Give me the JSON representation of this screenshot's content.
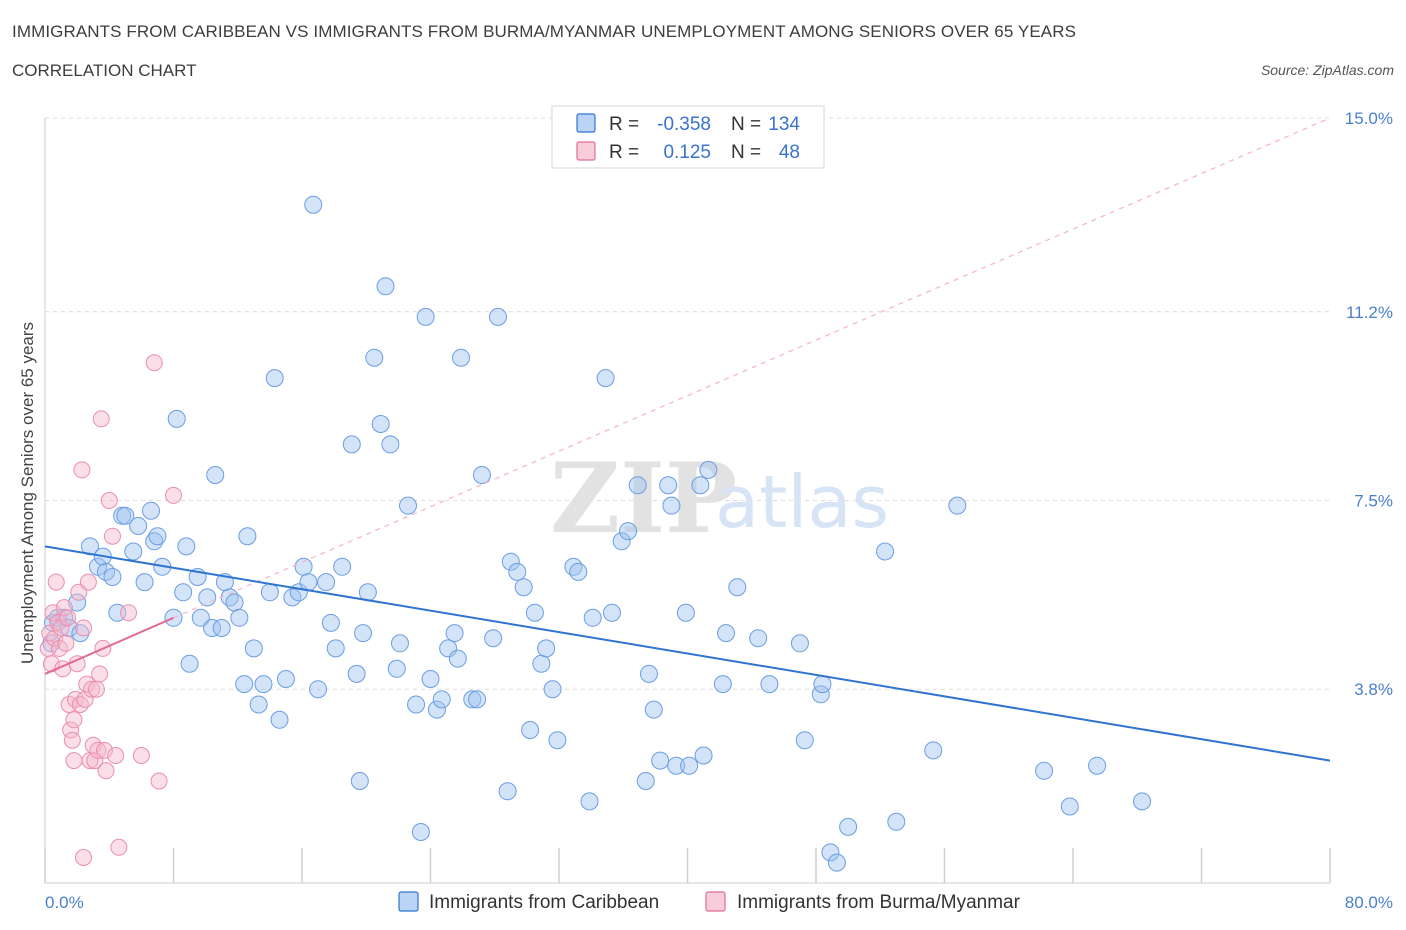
{
  "header": {
    "title": "IMMIGRANTS FROM CARIBBEAN VS IMMIGRANTS FROM BURMA/MYANMAR UNEMPLOYMENT AMONG SENIORS OVER 65 YEARS",
    "subtitle": "CORRELATION CHART",
    "source": "Source: ZipAtlas.com"
  },
  "legend_top": {
    "r_label": "R =",
    "n_label": "N =",
    "rows": [
      {
        "r": "-0.358",
        "n": "134",
        "color": "#9ec1f0"
      },
      {
        "r": "0.125",
        "n": "48",
        "color": "#f5b8cb"
      }
    ]
  },
  "legend_bottom": [
    {
      "label": "Immigrants from Caribbean",
      "color": "#9ec1f0"
    },
    {
      "label": "Immigrants from Burma/Myanmar",
      "color": "#f5b8cb"
    }
  ],
  "watermark": {
    "zip": "ZIP",
    "atlas": "atlas"
  },
  "chart_data": {
    "type": "scatter",
    "title": "IMMIGRANTS FROM CARIBBEAN VS IMMIGRANTS FROM BURMA/MYANMAR UNEMPLOYMENT AMONG SENIORS OVER 65 YEARS",
    "xlabel": "",
    "ylabel": "Unemployment Among Seniors over 65 years",
    "xlim": [
      0,
      80
    ],
    "ylim": [
      0,
      15
    ],
    "x_tick_labels": [
      "0.0%",
      "80.0%"
    ],
    "y_ticks": [
      3.8,
      7.5,
      11.2,
      15.0
    ],
    "y_tick_labels": [
      "3.8%",
      "7.5%",
      "11.2%",
      "15.0%"
    ],
    "grid": true,
    "colors": {
      "caribbean": "#9ec1f0",
      "caribbean_line": "#2f74d0",
      "burma": "#f5b8cb",
      "burma_line": "#e46a96"
    },
    "series": [
      {
        "name": "Immigrants from Caribbean",
        "trend": {
          "x": [
            0,
            80
          ],
          "y": [
            6.6,
            2.4
          ]
        },
        "points": [
          [
            0.4,
            4.7
          ],
          [
            0.5,
            5.1
          ],
          [
            0.8,
            5.2
          ],
          [
            1.2,
            5.2
          ],
          [
            1.5,
            5.0
          ],
          [
            2.0,
            5.5
          ],
          [
            2.2,
            4.9
          ],
          [
            2.8,
            6.6
          ],
          [
            3.3,
            6.2
          ],
          [
            3.6,
            6.4
          ],
          [
            3.8,
            6.1
          ],
          [
            4.2,
            6.0
          ],
          [
            4.5,
            5.3
          ],
          [
            4.8,
            7.2
          ],
          [
            5.0,
            7.2
          ],
          [
            5.5,
            6.5
          ],
          [
            5.8,
            7.0
          ],
          [
            6.2,
            5.9
          ],
          [
            6.6,
            7.3
          ],
          [
            6.8,
            6.7
          ],
          [
            7.0,
            6.8
          ],
          [
            7.3,
            6.2
          ],
          [
            8.0,
            5.2
          ],
          [
            8.2,
            9.1
          ],
          [
            8.6,
            5.7
          ],
          [
            8.8,
            6.6
          ],
          [
            9.0,
            4.3
          ],
          [
            9.5,
            6.0
          ],
          [
            9.7,
            5.2
          ],
          [
            10.1,
            5.6
          ],
          [
            10.4,
            5.0
          ],
          [
            10.6,
            8.0
          ],
          [
            11.0,
            5.0
          ],
          [
            11.2,
            5.9
          ],
          [
            11.5,
            5.6
          ],
          [
            11.8,
            5.5
          ],
          [
            12.1,
            5.2
          ],
          [
            12.4,
            3.9
          ],
          [
            12.6,
            6.8
          ],
          [
            13.0,
            4.6
          ],
          [
            13.3,
            3.5
          ],
          [
            13.6,
            3.9
          ],
          [
            14.0,
            5.7
          ],
          [
            14.3,
            9.9
          ],
          [
            14.6,
            3.2
          ],
          [
            15.0,
            4.0
          ],
          [
            15.4,
            5.6
          ],
          [
            15.8,
            5.7
          ],
          [
            16.1,
            6.2
          ],
          [
            16.4,
            5.9
          ],
          [
            16.7,
            13.3
          ],
          [
            17.0,
            3.8
          ],
          [
            17.5,
            5.9
          ],
          [
            17.8,
            5.1
          ],
          [
            18.1,
            4.6
          ],
          [
            18.5,
            6.2
          ],
          [
            19.1,
            8.6
          ],
          [
            19.4,
            4.1
          ],
          [
            19.6,
            2.0
          ],
          [
            19.8,
            4.9
          ],
          [
            20.1,
            5.7
          ],
          [
            20.5,
            10.3
          ],
          [
            20.9,
            9.0
          ],
          [
            21.2,
            11.7
          ],
          [
            21.5,
            8.6
          ],
          [
            21.9,
            4.2
          ],
          [
            22.1,
            4.7
          ],
          [
            22.6,
            7.4
          ],
          [
            23.1,
            3.5
          ],
          [
            23.4,
            1.0
          ],
          [
            23.7,
            11.1
          ],
          [
            24.0,
            4.0
          ],
          [
            24.4,
            3.4
          ],
          [
            24.7,
            3.6
          ],
          [
            25.1,
            4.6
          ],
          [
            25.5,
            4.9
          ],
          [
            25.7,
            4.4
          ],
          [
            25.9,
            10.3
          ],
          [
            26.6,
            3.6
          ],
          [
            26.9,
            3.6
          ],
          [
            27.2,
            8.0
          ],
          [
            27.9,
            4.8
          ],
          [
            28.2,
            11.1
          ],
          [
            28.8,
            1.8
          ],
          [
            29.0,
            6.3
          ],
          [
            29.4,
            6.1
          ],
          [
            29.8,
            5.8
          ],
          [
            30.2,
            3.0
          ],
          [
            30.5,
            5.3
          ],
          [
            30.9,
            4.3
          ],
          [
            31.2,
            4.6
          ],
          [
            31.6,
            3.8
          ],
          [
            31.9,
            2.8
          ],
          [
            32.9,
            6.2
          ],
          [
            33.2,
            6.1
          ],
          [
            33.9,
            1.6
          ],
          [
            34.1,
            5.2
          ],
          [
            34.9,
            9.9
          ],
          [
            35.3,
            5.3
          ],
          [
            35.9,
            6.7
          ],
          [
            36.3,
            6.9
          ],
          [
            36.9,
            7.8
          ],
          [
            37.4,
            2.0
          ],
          [
            37.6,
            4.1
          ],
          [
            37.9,
            3.4
          ],
          [
            38.3,
            2.4
          ],
          [
            38.8,
            7.8
          ],
          [
            39.0,
            7.4
          ],
          [
            39.3,
            2.3
          ],
          [
            39.9,
            5.3
          ],
          [
            40.1,
            2.3
          ],
          [
            40.8,
            7.8
          ],
          [
            41.0,
            2.5
          ],
          [
            41.3,
            8.1
          ],
          [
            42.2,
            3.9
          ],
          [
            42.4,
            4.9
          ],
          [
            43.1,
            5.8
          ],
          [
            44.4,
            4.8
          ],
          [
            45.1,
            3.9
          ],
          [
            47.0,
            4.7
          ],
          [
            47.3,
            2.8
          ],
          [
            48.3,
            3.7
          ],
          [
            48.4,
            3.9
          ],
          [
            48.9,
            0.6
          ],
          [
            49.3,
            0.4
          ],
          [
            50.0,
            1.1
          ],
          [
            52.3,
            6.5
          ],
          [
            53.0,
            1.2
          ],
          [
            55.3,
            2.6
          ],
          [
            56.8,
            7.4
          ],
          [
            62.2,
            2.2
          ],
          [
            63.8,
            1.5
          ],
          [
            65.5,
            2.3
          ],
          [
            68.3,
            1.6
          ]
        ]
      },
      {
        "name": "Immigrants from Burma/Myanmar",
        "trend": {
          "x": [
            0,
            8
          ],
          "y": [
            4.1,
            5.2
          ]
        },
        "extension": {
          "x": [
            8,
            80
          ],
          "y": [
            5.2,
            15.0
          ]
        },
        "points": [
          [
            0.2,
            4.6
          ],
          [
            0.3,
            4.9
          ],
          [
            0.4,
            4.3
          ],
          [
            0.5,
            5.3
          ],
          [
            0.6,
            4.8
          ],
          [
            0.7,
            5.9
          ],
          [
            0.8,
            5.1
          ],
          [
            0.9,
            4.6
          ],
          [
            1.0,
            5.0
          ],
          [
            1.1,
            4.2
          ],
          [
            1.2,
            5.4
          ],
          [
            1.3,
            4.7
          ],
          [
            1.4,
            5.2
          ],
          [
            1.5,
            3.5
          ],
          [
            1.6,
            3.0
          ],
          [
            1.7,
            2.8
          ],
          [
            1.8,
            3.2
          ],
          [
            1.9,
            3.6
          ],
          [
            2.0,
            4.3
          ],
          [
            2.1,
            5.7
          ],
          [
            2.2,
            3.5
          ],
          [
            2.3,
            8.1
          ],
          [
            2.4,
            5.0
          ],
          [
            2.5,
            3.6
          ],
          [
            2.6,
            3.9
          ],
          [
            2.7,
            5.9
          ],
          [
            2.8,
            2.4
          ],
          [
            2.9,
            3.8
          ],
          [
            3.0,
            2.7
          ],
          [
            3.1,
            2.4
          ],
          [
            3.2,
            3.8
          ],
          [
            3.3,
            2.6
          ],
          [
            3.4,
            4.1
          ],
          [
            3.5,
            9.1
          ],
          [
            3.6,
            4.6
          ],
          [
            3.7,
            2.6
          ],
          [
            3.8,
            2.2
          ],
          [
            4.0,
            7.5
          ],
          [
            4.2,
            6.8
          ],
          [
            4.4,
            2.5
          ],
          [
            4.6,
            0.7
          ],
          [
            5.2,
            5.3
          ],
          [
            6.0,
            2.5
          ],
          [
            6.8,
            10.2
          ],
          [
            7.1,
            2.0
          ],
          [
            8.0,
            7.6
          ],
          [
            2.4,
            0.5
          ],
          [
            1.8,
            2.4
          ]
        ]
      }
    ]
  }
}
